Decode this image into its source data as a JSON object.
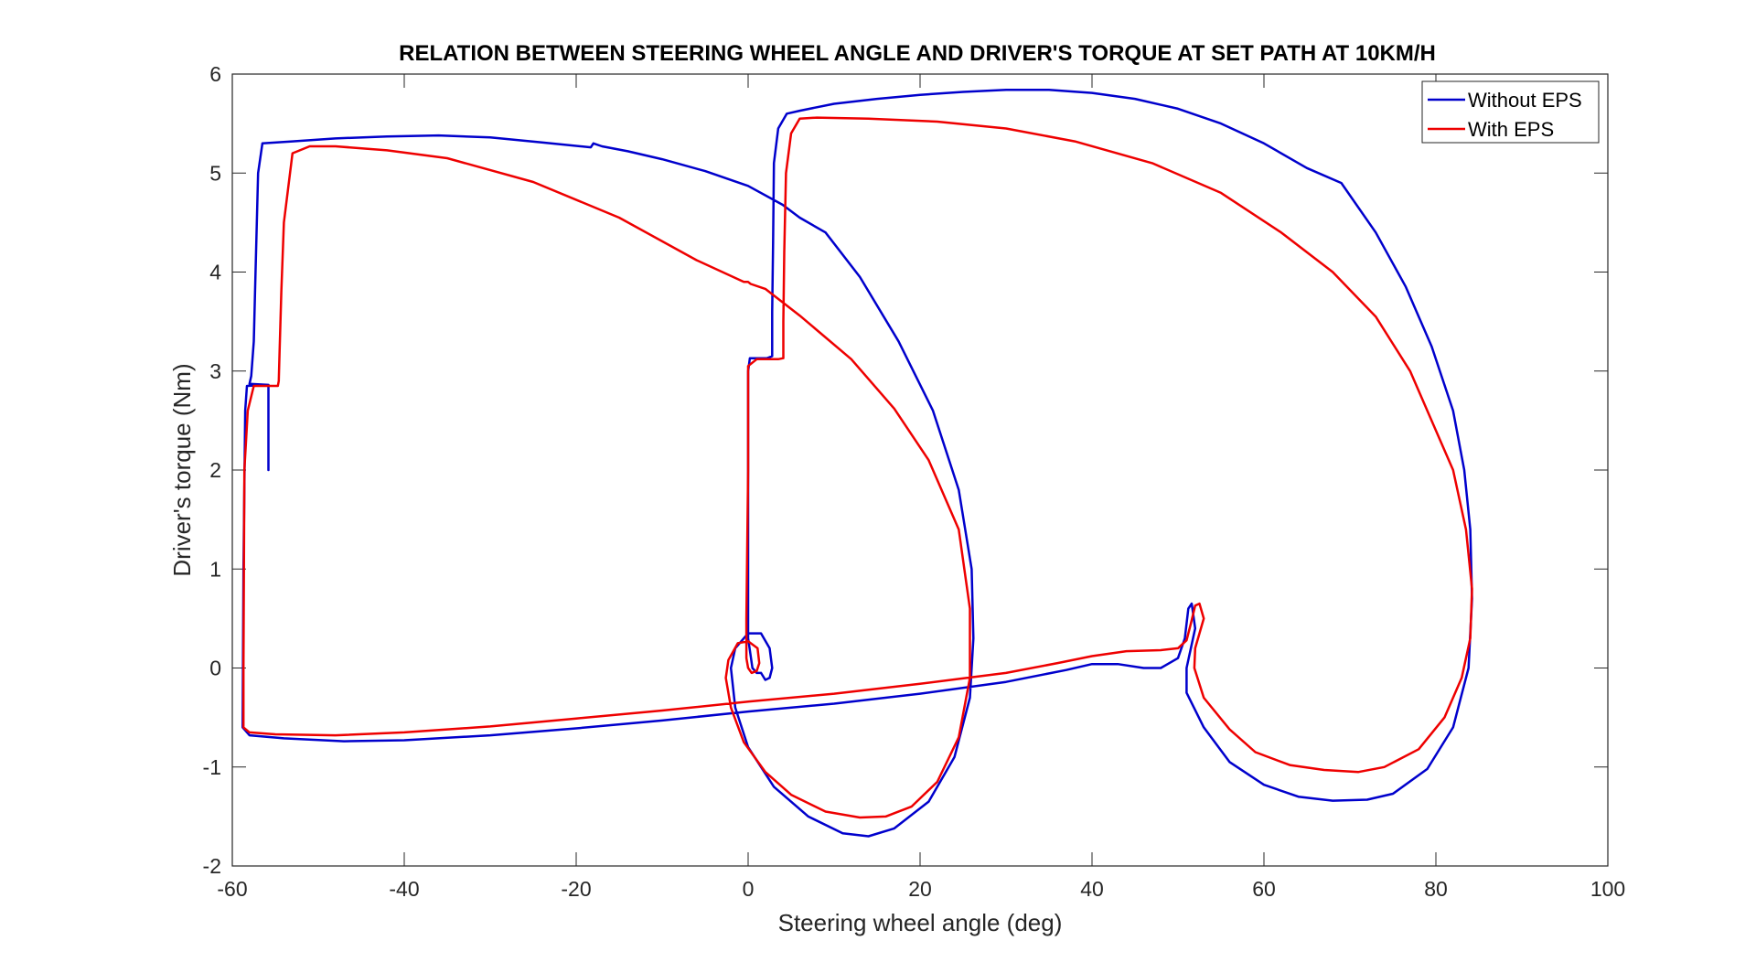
{
  "chart_data": {
    "type": "line",
    "title": "RELATION BETWEEN STEERING WHEEL ANGLE AND DRIVER'S TORQUE AT SET PATH AT 10KM/H",
    "xlabel": "Steering wheel angle (deg)",
    "ylabel": "Driver's torque (Nm)",
    "xlim": [
      -60,
      100
    ],
    "ylim": [
      -2,
      6
    ],
    "xticks": [
      -60,
      -40,
      -20,
      0,
      20,
      40,
      60,
      80,
      100
    ],
    "yticks": [
      -2,
      -1,
      0,
      1,
      2,
      3,
      4,
      5,
      6
    ],
    "grid": false,
    "legend_position": "top-right",
    "series": [
      {
        "name": "Without EPS",
        "color": "#0000cc",
        "points": [
          [
            1.5,
            -0.05
          ],
          [
            2.0,
            -0.12
          ],
          [
            2.5,
            -0.1
          ],
          [
            2.8,
            0.0
          ],
          [
            2.5,
            0.2
          ],
          [
            1.5,
            0.35
          ],
          [
            0.0,
            0.35
          ],
          [
            -1.5,
            0.2
          ],
          [
            -2.0,
            0.0
          ],
          [
            -1.5,
            -0.4
          ],
          [
            0.0,
            -0.8
          ],
          [
            3.0,
            -1.2
          ],
          [
            7.0,
            -1.5
          ],
          [
            11.0,
            -1.67
          ],
          [
            14.0,
            -1.7
          ],
          [
            17.0,
            -1.62
          ],
          [
            21.0,
            -1.35
          ],
          [
            24.0,
            -0.9
          ],
          [
            25.8,
            -0.3
          ],
          [
            26.2,
            0.3
          ],
          [
            26.0,
            1.0
          ],
          [
            24.5,
            1.8
          ],
          [
            21.5,
            2.6
          ],
          [
            17.5,
            3.3
          ],
          [
            13.0,
            3.95
          ],
          [
            9.0,
            4.4
          ],
          [
            6.0,
            4.55
          ],
          [
            4.0,
            4.68
          ],
          [
            0.0,
            4.87
          ],
          [
            -5.0,
            5.02
          ],
          [
            -10.0,
            5.14
          ],
          [
            -14.0,
            5.22
          ],
          [
            -17.0,
            5.27
          ],
          [
            -18.0,
            5.3
          ],
          [
            -18.3,
            5.26
          ],
          [
            -24.0,
            5.31
          ],
          [
            -30.0,
            5.36
          ],
          [
            -36.0,
            5.38
          ],
          [
            -42.0,
            5.37
          ],
          [
            -48.0,
            5.35
          ],
          [
            -53.0,
            5.32
          ],
          [
            -56.5,
            5.3
          ],
          [
            -57.0,
            5.0
          ],
          [
            -57.3,
            4.0
          ],
          [
            -57.5,
            3.3
          ],
          [
            -57.8,
            2.95
          ],
          [
            -58.0,
            2.87
          ],
          [
            -55.8,
            2.86
          ],
          [
            -55.8,
            2.0
          ],
          [
            -55.8,
            2.86
          ],
          [
            -58.3,
            2.85
          ],
          [
            -58.5,
            2.6
          ],
          [
            -58.7,
            1.0
          ],
          [
            -58.8,
            -0.6
          ],
          [
            -58.0,
            -0.68
          ],
          [
            -54.0,
            -0.71
          ],
          [
            -47.0,
            -0.74
          ],
          [
            -40.0,
            -0.73
          ],
          [
            -30.0,
            -0.68
          ],
          [
            -20.0,
            -0.61
          ],
          [
            -10.0,
            -0.53
          ],
          [
            0.0,
            -0.44
          ],
          [
            10.0,
            -0.36
          ],
          [
            20.0,
            -0.26
          ],
          [
            30.0,
            -0.14
          ],
          [
            37.0,
            -0.02
          ],
          [
            40.0,
            0.04
          ],
          [
            43.0,
            0.04
          ],
          [
            46.0,
            0.0
          ],
          [
            48.0,
            0.0
          ],
          [
            50.0,
            0.1
          ],
          [
            50.8,
            0.3
          ],
          [
            51.2,
            0.6
          ],
          [
            51.6,
            0.65
          ],
          [
            52.0,
            0.4
          ],
          [
            51.0,
            0.0
          ],
          [
            51.0,
            -0.25
          ],
          [
            53.0,
            -0.6
          ],
          [
            56.0,
            -0.95
          ],
          [
            60.0,
            -1.18
          ],
          [
            64.0,
            -1.3
          ],
          [
            68.0,
            -1.34
          ],
          [
            72.0,
            -1.33
          ],
          [
            75.0,
            -1.27
          ],
          [
            79.0,
            -1.02
          ],
          [
            82.0,
            -0.6
          ],
          [
            83.8,
            0.0
          ],
          [
            84.2,
            0.7
          ],
          [
            84.0,
            1.4
          ],
          [
            83.3,
            2.0
          ],
          [
            82.0,
            2.6
          ],
          [
            79.5,
            3.25
          ],
          [
            76.5,
            3.85
          ],
          [
            73.0,
            4.4
          ],
          [
            69.0,
            4.9
          ],
          [
            65.0,
            5.05
          ],
          [
            60.0,
            5.3
          ],
          [
            55.0,
            5.5
          ],
          [
            50.0,
            5.65
          ],
          [
            45.0,
            5.75
          ],
          [
            40.0,
            5.81
          ],
          [
            35.0,
            5.84
          ],
          [
            30.0,
            5.84
          ],
          [
            25.0,
            5.82
          ],
          [
            20.0,
            5.79
          ],
          [
            15.0,
            5.75
          ],
          [
            10.0,
            5.7
          ],
          [
            6.0,
            5.63
          ],
          [
            4.5,
            5.6
          ],
          [
            3.5,
            5.45
          ],
          [
            3.0,
            5.1
          ],
          [
            2.9,
            4.3
          ],
          [
            2.8,
            3.6
          ],
          [
            2.8,
            3.15
          ],
          [
            2.2,
            3.13
          ],
          [
            0.2,
            3.13
          ],
          [
            0.0,
            3.0
          ],
          [
            0.0,
            1.5
          ],
          [
            0.0,
            0.3
          ],
          [
            0.5,
            0.0
          ],
          [
            1.0,
            -0.05
          ],
          [
            1.5,
            -0.05
          ]
        ]
      },
      {
        "name": "With EPS",
        "color": "#ee0000",
        "points": [
          [
            0.0,
            0.0
          ],
          [
            0.4,
            -0.05
          ],
          [
            1.0,
            -0.03
          ],
          [
            1.3,
            0.05
          ],
          [
            1.1,
            0.2
          ],
          [
            0.0,
            0.27
          ],
          [
            -1.2,
            0.25
          ],
          [
            -2.3,
            0.08
          ],
          [
            -2.6,
            -0.1
          ],
          [
            -2.0,
            -0.4
          ],
          [
            -0.5,
            -0.75
          ],
          [
            2.0,
            -1.05
          ],
          [
            5.0,
            -1.28
          ],
          [
            9.0,
            -1.45
          ],
          [
            13.0,
            -1.51
          ],
          [
            16.0,
            -1.5
          ],
          [
            19.0,
            -1.4
          ],
          [
            22.0,
            -1.15
          ],
          [
            24.5,
            -0.7
          ],
          [
            25.8,
            -0.1
          ],
          [
            25.8,
            0.6
          ],
          [
            24.5,
            1.4
          ],
          [
            21.0,
            2.1
          ],
          [
            17.0,
            2.62
          ],
          [
            12.0,
            3.12
          ],
          [
            6.0,
            3.56
          ],
          [
            2.0,
            3.83
          ],
          [
            0.3,
            3.88
          ],
          [
            0.0,
            3.9
          ],
          [
            -0.5,
            3.9
          ],
          [
            -6.0,
            4.12
          ],
          [
            -15.0,
            4.55
          ],
          [
            -25.0,
            4.91
          ],
          [
            -35.0,
            5.15
          ],
          [
            -42.0,
            5.23
          ],
          [
            -48.0,
            5.27
          ],
          [
            -51.0,
            5.27
          ],
          [
            -53.0,
            5.2
          ],
          [
            -54.0,
            4.5
          ],
          [
            -54.3,
            3.8
          ],
          [
            -54.5,
            3.2
          ],
          [
            -54.6,
            2.9
          ],
          [
            -54.7,
            2.85
          ],
          [
            -57.5,
            2.85
          ],
          [
            -58.2,
            2.6
          ],
          [
            -58.6,
            2.0
          ],
          [
            -58.7,
            0.0
          ],
          [
            -58.7,
            -0.6
          ],
          [
            -58.0,
            -0.65
          ],
          [
            -55.0,
            -0.67
          ],
          [
            -48.0,
            -0.68
          ],
          [
            -40.0,
            -0.65
          ],
          [
            -30.0,
            -0.59
          ],
          [
            -20.0,
            -0.51
          ],
          [
            -10.0,
            -0.43
          ],
          [
            0.0,
            -0.34
          ],
          [
            10.0,
            -0.26
          ],
          [
            20.0,
            -0.16
          ],
          [
            30.0,
            -0.05
          ],
          [
            36.0,
            0.05
          ],
          [
            40.0,
            0.12
          ],
          [
            44.0,
            0.17
          ],
          [
            48.0,
            0.18
          ],
          [
            50.0,
            0.2
          ],
          [
            51.0,
            0.28
          ],
          [
            51.5,
            0.45
          ],
          [
            52.0,
            0.63
          ],
          [
            52.5,
            0.65
          ],
          [
            53.0,
            0.5
          ],
          [
            52.0,
            0.2
          ],
          [
            51.9,
            0.0
          ],
          [
            53.0,
            -0.3
          ],
          [
            56.0,
            -0.62
          ],
          [
            59.0,
            -0.85
          ],
          [
            63.0,
            -0.98
          ],
          [
            67.0,
            -1.03
          ],
          [
            71.0,
            -1.05
          ],
          [
            74.0,
            -1.0
          ],
          [
            78.0,
            -0.82
          ],
          [
            81.0,
            -0.5
          ],
          [
            83.0,
            -0.1
          ],
          [
            84.0,
            0.3
          ],
          [
            84.2,
            0.8
          ],
          [
            83.5,
            1.4
          ],
          [
            82.0,
            2.0
          ],
          [
            80.0,
            2.4
          ],
          [
            77.0,
            3.0
          ],
          [
            73.0,
            3.55
          ],
          [
            68.0,
            4.0
          ],
          [
            62.0,
            4.4
          ],
          [
            55.0,
            4.8
          ],
          [
            47.0,
            5.1
          ],
          [
            38.0,
            5.32
          ],
          [
            30.0,
            5.45
          ],
          [
            22.0,
            5.52
          ],
          [
            14.0,
            5.55
          ],
          [
            8.0,
            5.56
          ],
          [
            6.0,
            5.55
          ],
          [
            5.0,
            5.4
          ],
          [
            4.4,
            5.0
          ],
          [
            4.2,
            4.2
          ],
          [
            4.1,
            3.5
          ],
          [
            4.1,
            3.13
          ],
          [
            3.5,
            3.12
          ],
          [
            1.0,
            3.12
          ],
          [
            0.0,
            3.05
          ],
          [
            0.0,
            2.0
          ],
          [
            -0.2,
            0.5
          ],
          [
            -0.2,
            0.1
          ],
          [
            0.0,
            0.0
          ]
        ]
      }
    ]
  }
}
